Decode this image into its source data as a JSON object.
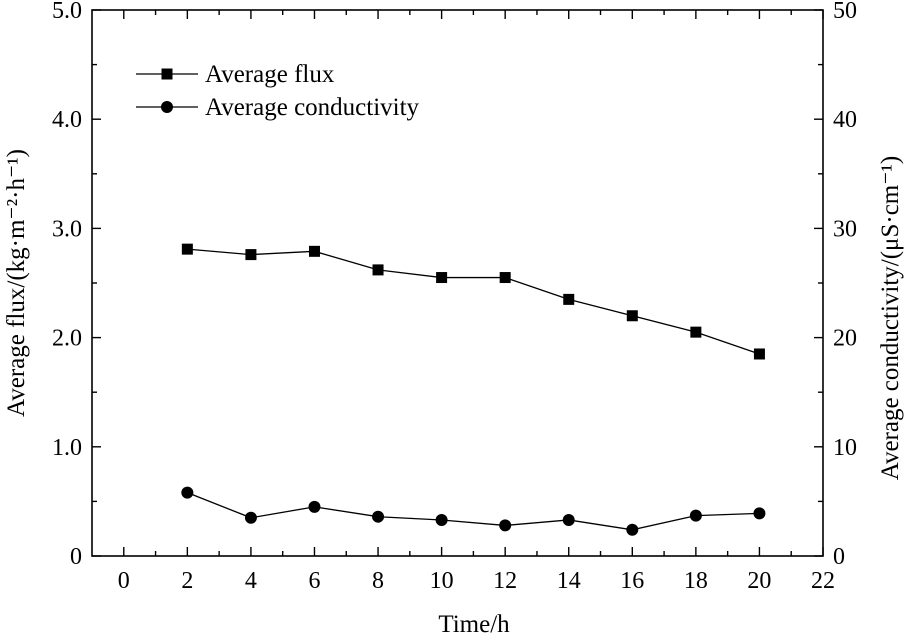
{
  "chart_data": {
    "type": "line",
    "title": "",
    "xlabel": "Time/h",
    "ylabel": "Average flux/(kg·m⁻²·h⁻¹)",
    "ylabel_right": "Average conductivity/(μS·cm⁻¹)",
    "xlim": [
      -1,
      22
    ],
    "ylim": [
      0,
      5
    ],
    "ylim_right": [
      0,
      50
    ],
    "x_ticks": [
      0,
      2,
      4,
      6,
      8,
      10,
      12,
      14,
      16,
      18,
      20,
      22
    ],
    "x_tick_labels": [
      "0",
      "2",
      "4",
      "6",
      "8",
      "10",
      "12",
      "14",
      "16",
      "18",
      "20",
      "22"
    ],
    "y_ticks": [
      0,
      1,
      2,
      3,
      4,
      5
    ],
    "y_tick_labels": [
      "0",
      "1.0",
      "2.0",
      "3.0",
      "4.0",
      "5.0"
    ],
    "y_ticks_right": [
      0,
      10,
      20,
      30,
      40,
      50
    ],
    "y_tick_labels_right": [
      "0",
      "10",
      "20",
      "30",
      "40",
      "50"
    ],
    "grid": false,
    "legend_position": "top-left",
    "x": [
      2,
      4,
      6,
      8,
      10,
      12,
      14,
      16,
      18,
      20
    ],
    "series": [
      {
        "name": "Average flux",
        "axis": "left",
        "marker": "square",
        "values": [
          2.81,
          2.76,
          2.79,
          2.62,
          2.55,
          2.55,
          2.35,
          2.2,
          2.05,
          1.85
        ]
      },
      {
        "name": "Average conductivity",
        "axis": "right",
        "marker": "circle",
        "values": [
          5.8,
          3.5,
          4.5,
          3.6,
          3.3,
          2.8,
          3.3,
          2.4,
          3.7,
          3.9
        ]
      }
    ]
  }
}
